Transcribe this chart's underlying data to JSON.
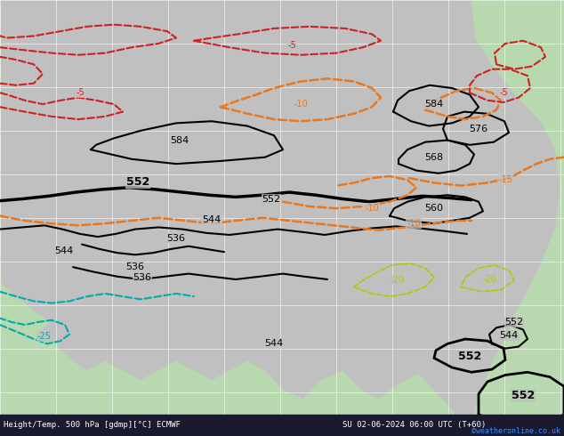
{
  "title": "Height/Temp. 500 hPa [gdmp][°C] ECMWF",
  "subtitle": "SU 02-06-2024 06:00 UTC (T+60)",
  "copyright": "©weatheronline.co.uk",
  "bg_color": "#c8c8c8",
  "land_color": "#b8d8b0",
  "grid_color": "#ffffff",
  "bottom_bar_color": "#1a1a2e",
  "bottom_text_color": "#ffffff",
  "figsize": [
    6.34,
    4.9
  ],
  "dpi": 100
}
